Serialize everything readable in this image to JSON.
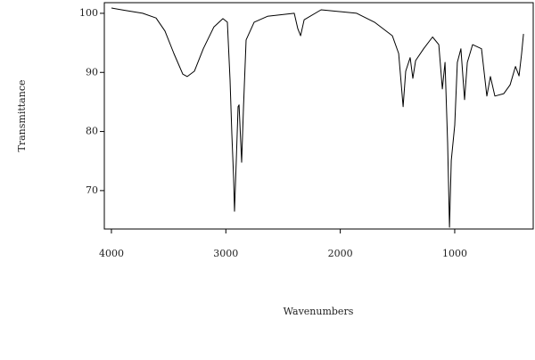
{
  "chart_data": {
    "type": "line",
    "xlabel": "Wavenumbers",
    "ylabel": "Transmittance",
    "xlim": [
      4062,
      314
    ],
    "ylim": [
      63.5,
      101.8
    ],
    "xticks": [
      4000,
      3000,
      2000,
      1000
    ],
    "yticks": [
      70,
      80,
      90,
      100
    ],
    "series": [
      {
        "color": "#000000",
        "x": [
          4000,
          3883,
          3727,
          3610,
          3532,
          3454,
          3376,
          3337,
          3275,
          3197,
          3104,
          3026,
          2987,
          2963,
          2948,
          2932,
          2924,
          2909,
          2893,
          2885,
          2870,
          2862,
          2846,
          2823,
          2753,
          2636,
          2402,
          2371,
          2347,
          2316,
          2168,
          1857,
          1701,
          1545,
          1490,
          1451,
          1428,
          1389,
          1366,
          1342,
          1272,
          1194,
          1139,
          1108,
          1085,
          1062,
          1046,
          1030,
          1000,
          977,
          946,
          914,
          890,
          844,
          766,
          719,
          688,
          649,
          571,
          516,
          469,
          438,
          415,
          399
        ],
        "values": [
          100.9,
          100.5,
          100,
          99.2,
          97,
          93.2,
          89.7,
          89.3,
          90.2,
          94,
          97.7,
          99.1,
          98.5,
          88.7,
          79.6,
          72.1,
          66.5,
          75.1,
          84.2,
          84.5,
          78.1,
          74.8,
          84.2,
          95.5,
          98.5,
          99.5,
          100,
          97.4,
          96.2,
          98.9,
          100.6,
          100,
          98.5,
          96.2,
          93.2,
          84.2,
          90.2,
          92.5,
          89,
          92,
          94,
          96,
          94.7,
          87.2,
          91.7,
          78.1,
          63.8,
          75.1,
          81.1,
          91.7,
          94,
          85.4,
          91.7,
          94.7,
          94,
          86,
          89.3,
          86,
          86.4,
          87.9,
          91,
          89.4,
          93.2,
          96.5
        ]
      }
    ]
  }
}
